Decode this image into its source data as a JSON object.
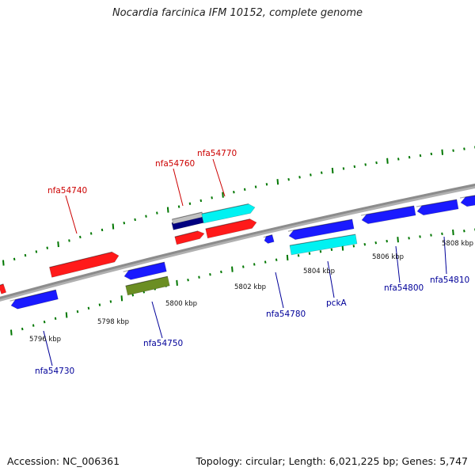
{
  "title": "Nocardia farcinica IFM 10152, complete genome",
  "footer": {
    "accession": "Accession: NC_006361",
    "topology": "Topology: circular; Length: 6,021,225 bp; Genes: 5,747"
  },
  "colors": {
    "forward_label": "#cc0000",
    "reverse_label": "#000099",
    "backbone": "#8c8c8c",
    "ticks": "#007700",
    "gene_red": "#ff1a1a",
    "gene_blue": "#1a1aff",
    "gene_cyan": "#00f2f2",
    "gene_olive": "#6b8e23",
    "gene_navy": "#000080",
    "gene_gray": "#c0c0c0"
  },
  "scale_labels": [
    "5796 kbp",
    "5798 kbp",
    "5800 kbp",
    "5802 kbp",
    "5804 kbp",
    "5806 kbp",
    "5808 kbp"
  ],
  "gene_labels": {
    "forward": [
      "nfa54740",
      "nfa54760",
      "nfa54770"
    ],
    "reverse": [
      "nfa54730",
      "nfa54750",
      "nfa54780",
      "pckA",
      "nfa54800",
      "nfa54810"
    ]
  }
}
